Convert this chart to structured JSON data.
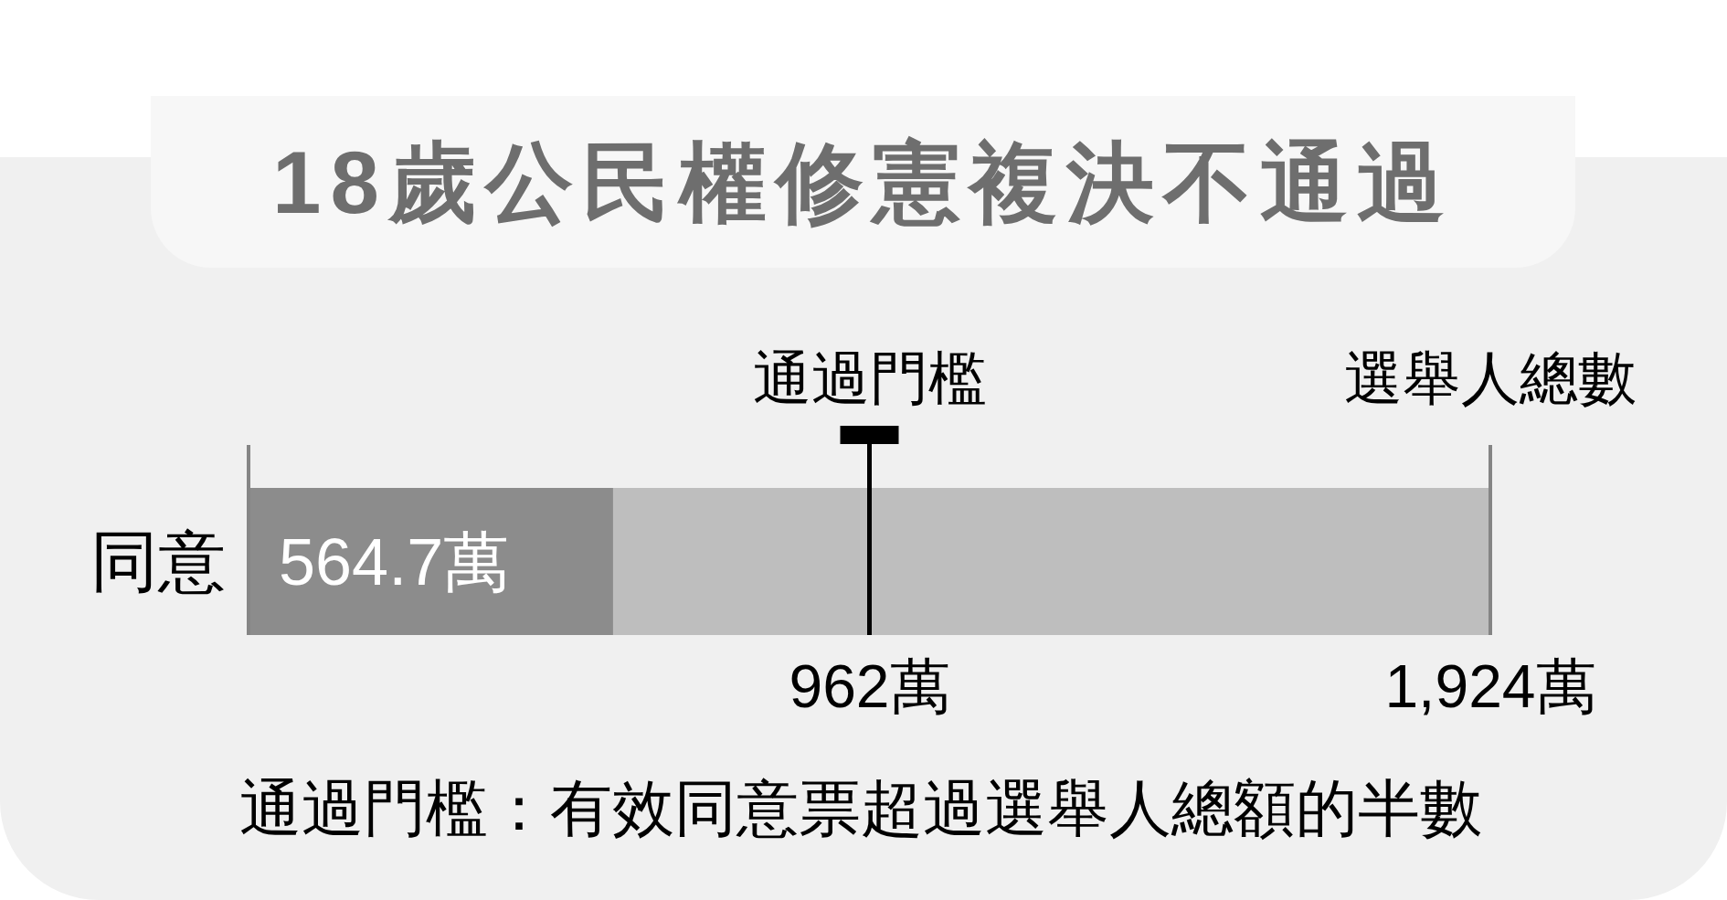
{
  "chart_data": {
    "type": "bar",
    "orientation": "horizontal",
    "title": "18歲公民權修憲複決不通過",
    "categories": [
      "同意"
    ],
    "values": [
      564.7
    ],
    "color": "#8c8c8c",
    "value_labels": [
      "564.7萬"
    ],
    "xlim": [
      0,
      1924
    ],
    "xticks": [
      {
        "value": 962,
        "label": "962萬"
      },
      {
        "value": 1924,
        "label": "1,924萬"
      }
    ],
    "bands": [
      {
        "axis": "x",
        "from": 0,
        "to": 1924,
        "label": "選舉人總數",
        "color": "#bebebe"
      }
    ],
    "ref_lines": [
      {
        "axis": "x",
        "value": 962,
        "label": "通過門檻",
        "color": "#000000"
      }
    ],
    "annotations": [
      "通過門檻：有效同意票超過選舉人總額的半數"
    ]
  }
}
